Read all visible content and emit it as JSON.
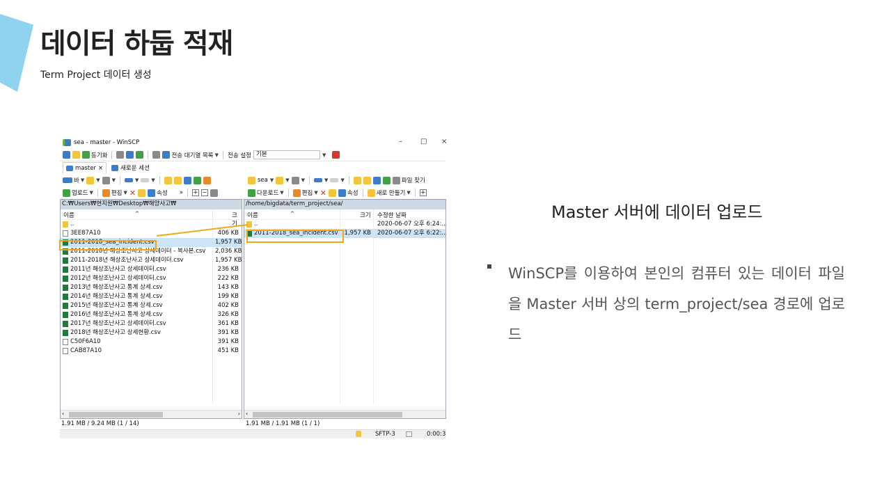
{
  "slide": {
    "title": "데이터 하둡 적재",
    "subtitle": "Term Project 데이터 생성",
    "right_heading": "Master 서버에 데이터 업로드",
    "bullet_text": "WinSCP를 이용하여 본인의 컴퓨터 있는 데이터 파일을 Master 서버 상의 term_project/sea 경로에 업로드",
    "accent_color": "#8fd3ee",
    "highlight_color": "#f0a818"
  },
  "window": {
    "title": "sea - master - WinSCP",
    "controls": {
      "minimize": "–",
      "maximize": "□",
      "close": "×"
    },
    "toolbar1": {
      "sync": "동기화",
      "queue": "전송 대기열 목록",
      "transfer_label": "전송 설정",
      "transfer_value": "기본"
    },
    "tabs": {
      "active": "master",
      "close": "×",
      "new_session": "새로운 세션"
    },
    "left_toolbar": {
      "drive": "바",
      "upload": "업로드",
      "edit": "편집",
      "properties": "속성",
      "more": "»"
    },
    "right_toolbar": {
      "folder": "sea",
      "download": "다운로드",
      "edit": "편집",
      "properties": "속성",
      "new": "새로 만들기",
      "find": "파일 찾기"
    },
    "left_pane": {
      "path": "C:₩Users₩현지원₩Desktop₩해양사고₩",
      "col_name": "이름",
      "col_size": "크기",
      "files": [
        {
          "name": "..",
          "size": "",
          "type": "up"
        },
        {
          "name": "3EE87A10",
          "size": "406 KB",
          "type": "doc"
        },
        {
          "name": "2011-2018_sea_incident.csv",
          "size": "1,957 KB",
          "type": "xls"
        },
        {
          "name": "2011-2018년 해상조난사고 상세데이터 - 복사본.csv",
          "size": "2,036 KB",
          "type": "xls"
        },
        {
          "name": "2011-2018년 해상조난사고 상세데이터.csv",
          "size": "1,957 KB",
          "type": "xls"
        },
        {
          "name": "2011년 해상조난사고 상세데이터.csv",
          "size": "236 KB",
          "type": "xls"
        },
        {
          "name": "2012년 해상조난사고 상세데이터.csv",
          "size": "222 KB",
          "type": "xls"
        },
        {
          "name": "2013년 해상조난사고 통계 상세.csv",
          "size": "143 KB",
          "type": "xls"
        },
        {
          "name": "2014년 해상조난사고 통계 상세.csv",
          "size": "199 KB",
          "type": "xls"
        },
        {
          "name": "2015년 해상조난사고 통계 상세.csv",
          "size": "402 KB",
          "type": "xls"
        },
        {
          "name": "2016년 해상조난사고 통계 상세.csv",
          "size": "326 KB",
          "type": "xls"
        },
        {
          "name": "2017년 해상조난사고 상세데이터.csv",
          "size": "361 KB",
          "type": "xls"
        },
        {
          "name": "2018년 해상조난사고 상세현황.csv",
          "size": "391 KB",
          "type": "xls"
        },
        {
          "name": "C50F6A10",
          "size": "391 KB",
          "type": "doc"
        },
        {
          "name": "CAB87A10",
          "size": "451 KB",
          "type": "doc"
        }
      ],
      "status": "1.91 MB / 9.24 MB (1 / 14)"
    },
    "right_pane": {
      "path": "/home/bigdata/term_project/sea/",
      "col_name": "이름",
      "col_size": "크기",
      "col_date": "수정한 날짜",
      "files": [
        {
          "name": "..",
          "size": "",
          "date": "2020-06-07 오후 6:24:...",
          "type": "up"
        },
        {
          "name": "2011-2018_sea_incident.csv",
          "size": "1,957 KB",
          "date": "2020-06-07 오후 6:22:...",
          "type": "xls"
        }
      ],
      "status": "1.91 MB / 1.91 MB (1 / 1)"
    },
    "bottom": {
      "protocol": "SFTP-3",
      "timer": "0:00:38"
    }
  }
}
